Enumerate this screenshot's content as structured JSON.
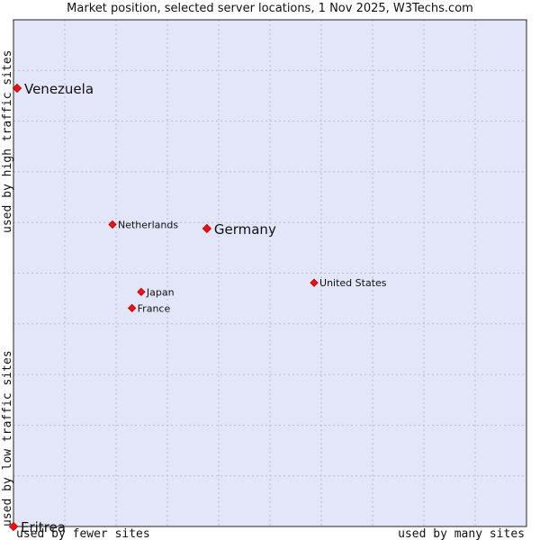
{
  "chart_data": {
    "type": "scatter",
    "title": "Market position, selected server locations, 1 Nov 2025, W3Techs.com",
    "xlabel_left": "used by fewer sites",
    "xlabel_right": "used by many sites",
    "ylabel_top": "used by high traffic sites",
    "ylabel_bottom": "used by low traffic sites",
    "xlim": [
      0,
      100
    ],
    "ylim": [
      0,
      100
    ],
    "grid": true,
    "colors": {
      "plot_background": "#e3e6f8",
      "grid": "#b8bcd0",
      "point": "#ee1111",
      "border": "#222222"
    },
    "points": [
      {
        "name": "Venezuela",
        "x": 0.7,
        "y": 86.5,
        "size": "large"
      },
      {
        "name": "Netherlands",
        "x": 19.3,
        "y": 59.6,
        "size": "small"
      },
      {
        "name": "Germany",
        "x": 37.7,
        "y": 58.8,
        "size": "large"
      },
      {
        "name": "United States",
        "x": 58.6,
        "y": 48.1,
        "size": "small"
      },
      {
        "name": "Japan",
        "x": 24.9,
        "y": 46.3,
        "size": "small"
      },
      {
        "name": "France",
        "x": 23.1,
        "y": 43.1,
        "size": "small"
      },
      {
        "name": "Eritrea",
        "x": 0,
        "y": 0,
        "size": "large"
      }
    ]
  }
}
